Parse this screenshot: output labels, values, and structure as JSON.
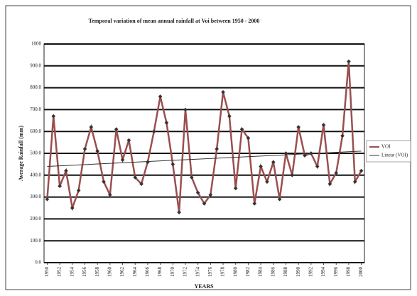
{
  "chart_data": {
    "type": "line",
    "title": "Temporal variation of mean annual rainfall at Voi between 1950 - 2000",
    "xlabel": "YEARS",
    "ylabel": "Average Rainfall (mm)",
    "x": [
      1950,
      1951,
      1952,
      1953,
      1954,
      1955,
      1956,
      1957,
      1958,
      1959,
      1960,
      1961,
      1962,
      1963,
      1964,
      1965,
      1966,
      1967,
      1968,
      1969,
      1970,
      1971,
      1972,
      1973,
      1974,
      1975,
      1976,
      1977,
      1978,
      1979,
      1980,
      1981,
      1982,
      1983,
      1984,
      1985,
      1986,
      1987,
      1988,
      1989,
      1990,
      1991,
      1992,
      1993,
      1994,
      1995,
      1996,
      1997,
      1998,
      1999,
      2000
    ],
    "series": [
      {
        "name": "VOI",
        "color": "#9a4f4f",
        "values": [
          290,
          670,
          350,
          420,
          250,
          330,
          520,
          620,
          510,
          370,
          310,
          610,
          470,
          560,
          390,
          360,
          460,
          600,
          760,
          640,
          450,
          230,
          700,
          390,
          320,
          270,
          310,
          520,
          780,
          670,
          340,
          610,
          570,
          270,
          440,
          370,
          460,
          290,
          500,
          400,
          620,
          490,
          500,
          440,
          630,
          360,
          410,
          580,
          920,
          370,
          420
        ]
      }
    ],
    "trendline": {
      "name": "Linear (VOI)",
      "color": "#333333",
      "x": [
        1950,
        2000
      ],
      "values": [
        440,
        510
      ]
    },
    "xlim": [
      1949.5,
      2000.5
    ],
    "xticks": [
      1950,
      1952,
      1954,
      1956,
      1958,
      1960,
      1962,
      1964,
      1966,
      1968,
      1970,
      1972,
      1974,
      1976,
      1978,
      1980,
      1982,
      1984,
      1986,
      1988,
      1990,
      1992,
      1994,
      1996,
      1998,
      2000
    ],
    "ylim": [
      0,
      1000
    ],
    "yticks": [
      {
        "value": 0,
        "label": "0.0"
      },
      {
        "value": 100,
        "label": "100.0"
      },
      {
        "value": 200,
        "label": "200.0"
      },
      {
        "value": 300,
        "label": "300.0"
      },
      {
        "value": 400,
        "label": "400.0"
      },
      {
        "value": 500,
        "label": "500.0"
      },
      {
        "value": 600,
        "label": "600.0"
      },
      {
        "value": 700,
        "label": "700.0"
      },
      {
        "value": 800,
        "label": "800.0"
      },
      {
        "value": 900,
        "label": "900.0"
      },
      {
        "value": 1000,
        "label": "1000"
      }
    ],
    "grid": true,
    "legend": "right"
  }
}
